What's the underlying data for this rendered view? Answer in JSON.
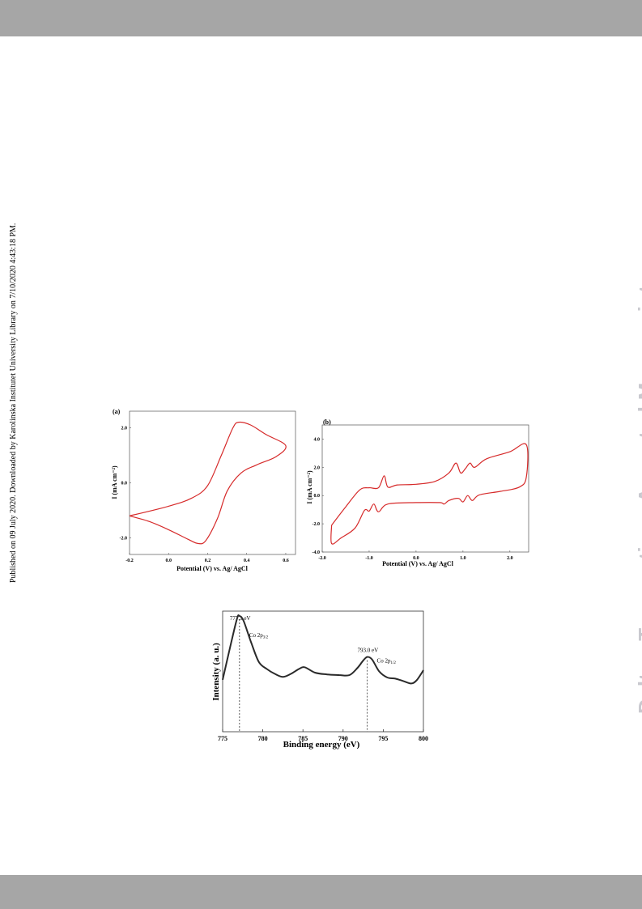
{
  "page": {
    "side_note": "Published on 09 July 2020. Downloaded by Karolinska Institutet University Library on 7/10/2020 4:43:18 PM.",
    "watermark": "Dalton Transactions Accepted Manuscript"
  },
  "chart_data": [
    {
      "type": "line",
      "panel_label": "(a)",
      "xlabel": "Potential (V) vs. Ag/ AgCl",
      "ylabel": "I (mA cm⁻²)",
      "xlim": [
        -0.2,
        0.65
      ],
      "ylim": [
        -2.6,
        2.6
      ],
      "xticks": [
        "-0.2",
        "0.0",
        "0.2",
        "0.4",
        "0.6"
      ],
      "yticks": [
        "2.0",
        "0.0",
        "-2.0"
      ],
      "series": [
        {
          "color": "#d62a2a",
          "x": [
            -0.2,
            0.0,
            0.12,
            0.2,
            0.27,
            0.33,
            0.36,
            0.42,
            0.5,
            0.6,
            0.55,
            0.45,
            0.37,
            0.3,
            0.25,
            0.19,
            0.15,
            0.1,
            0.0,
            -0.1,
            -0.2
          ],
          "y": [
            -1.2,
            -0.85,
            -0.55,
            -0.1,
            1.0,
            2.0,
            2.2,
            2.1,
            1.75,
            1.35,
            0.95,
            0.65,
            0.35,
            -0.3,
            -1.3,
            -2.1,
            -2.2,
            -2.05,
            -1.7,
            -1.4,
            -1.2
          ]
        }
      ]
    },
    {
      "type": "line",
      "panel_label": "(b)",
      "xlabel": "Potential (V) vs. Ag/ AgCl",
      "ylabel": "I (mA cm⁻²)",
      "xlim": [
        -2.0,
        2.4
      ],
      "ylim": [
        -4.0,
        5.0
      ],
      "xticks": [
        "-2.0",
        "-1.0",
        "0.0",
        "1.0",
        "2.0"
      ],
      "yticks": [
        "4.0",
        "2.0",
        "0.0",
        "-2.0",
        "-4.0"
      ],
      "series": [
        {
          "color": "#d62a2a",
          "x": [
            -1.8,
            -1.5,
            -1.2,
            -1.0,
            -0.8,
            -0.68,
            -0.6,
            -0.4,
            0.0,
            0.4,
            0.7,
            0.85,
            0.95,
            1.05,
            1.15,
            1.25,
            1.5,
            2.0,
            2.35,
            2.35,
            2.2,
            1.8,
            1.35,
            1.2,
            1.1,
            1.0,
            0.9,
            0.7,
            0.6,
            0.5,
            0.0,
            -0.6,
            -0.8,
            -0.9,
            -1.0,
            -1.1,
            -1.3,
            -1.6,
            -1.8,
            -1.8
          ],
          "y": [
            -2.1,
            -0.8,
            0.4,
            0.55,
            0.55,
            1.4,
            0.6,
            0.75,
            0.8,
            1.0,
            1.6,
            2.3,
            1.6,
            1.9,
            2.3,
            2.0,
            2.6,
            3.1,
            3.6,
            1.3,
            0.6,
            0.3,
            0.05,
            -0.35,
            0.0,
            -0.45,
            -0.2,
            -0.35,
            -0.6,
            -0.5,
            -0.5,
            -0.6,
            -1.15,
            -0.6,
            -1.1,
            -1.05,
            -2.3,
            -3.0,
            -3.4,
            -2.1
          ]
        }
      ]
    },
    {
      "type": "line",
      "xlabel": "Binding energy (eV)",
      "ylabel": "Intensity (a. u.)",
      "xlim": [
        775,
        800
      ],
      "ylim": [
        0,
        1
      ],
      "xticks": [
        "775",
        "780",
        "785",
        "790",
        "795",
        "800"
      ],
      "series": [
        {
          "color": "#2a2a2a",
          "x": [
            775,
            776,
            776.8,
            777.1,
            777.6,
            778.5,
            779.5,
            780.5,
            781.5,
            782.5,
            783.5,
            784.5,
            785.2,
            786.5,
            788,
            789.5,
            790.8,
            791.8,
            792.5,
            793.0,
            793.6,
            794.5,
            795.5,
            796.5,
            797.5,
            798.5,
            799.2,
            800
          ],
          "y": [
            0.43,
            0.72,
            0.94,
            0.96,
            0.92,
            0.75,
            0.58,
            0.52,
            0.48,
            0.455,
            0.48,
            0.52,
            0.535,
            0.49,
            0.475,
            0.47,
            0.47,
            0.53,
            0.59,
            0.62,
            0.6,
            0.5,
            0.45,
            0.44,
            0.42,
            0.4,
            0.43,
            0.51
          ]
        }
      ],
      "annotations": [
        {
          "text": "777.1 eV",
          "label": "Co 2p3/2",
          "x": 777.1
        },
        {
          "text": "793.0 eV",
          "label": "Co 2p1/2",
          "x": 793.0
        }
      ]
    }
  ]
}
